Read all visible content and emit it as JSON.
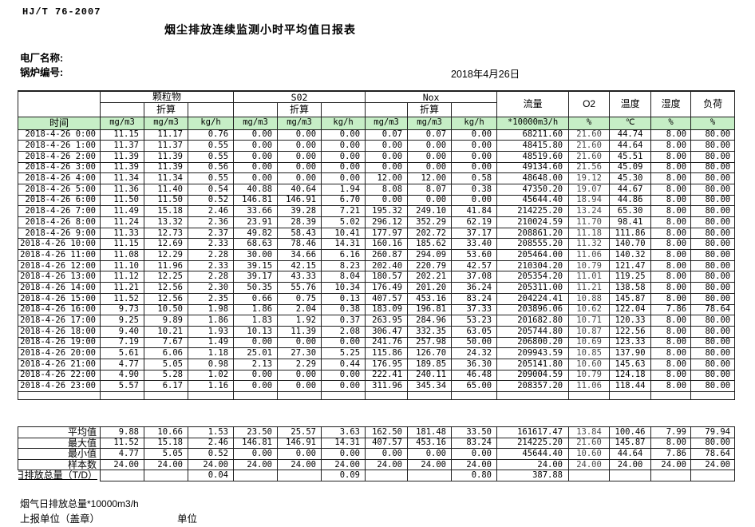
{
  "page": {
    "standard": "HJ/T  76-2007",
    "title": "烟尘排放连续监测小时平均值日报表",
    "plant_label": "电厂名称:",
    "boiler_label": "锅炉编号:",
    "date": "2018年4月26日"
  },
  "colors": {
    "header_green": "#c6eec6",
    "grid_border": "#1f1f1f"
  },
  "table": {
    "time_header": "时间",
    "groups": [
      {
        "label": "颗粒物",
        "sub_label": "折算",
        "units": [
          "mg/m3",
          "mg/m3",
          "kg/h"
        ]
      },
      {
        "label": "S02",
        "sub_label": "折算",
        "units": [
          "mg/m3",
          "mg/m3",
          "kg/h"
        ]
      },
      {
        "label": "Nox",
        "sub_label": "折算",
        "units": [
          "mg/m3",
          "mg/m3",
          "kg/h"
        ]
      }
    ],
    "single_columns": [
      {
        "label": "流量",
        "unit": "*10000m3/h"
      },
      {
        "label": "O2",
        "unit": "%"
      },
      {
        "label": "温度",
        "unit": "℃"
      },
      {
        "label": "湿度",
        "unit": "%"
      },
      {
        "label": "负荷",
        "unit": "%"
      }
    ],
    "rows": [
      [
        "2018-4-26 0:00",
        "11.15",
        "11.17",
        "0.76",
        "0.00",
        "0.00",
        "0.00",
        "0.07",
        "0.07",
        "0.00",
        "68211.60",
        "21.60",
        "44.74",
        "8.00",
        "80.00"
      ],
      [
        "2018-4-26 1:00",
        "11.37",
        "11.37",
        "0.55",
        "0.00",
        "0.00",
        "0.00",
        "0.00",
        "0.00",
        "0.00",
        "48415.80",
        "21.60",
        "44.64",
        "8.00",
        "80.00"
      ],
      [
        "2018-4-26 2:00",
        "11.39",
        "11.39",
        "0.55",
        "0.00",
        "0.00",
        "0.00",
        "0.00",
        "0.00",
        "0.00",
        "48519.60",
        "21.60",
        "45.51",
        "8.00",
        "80.00"
      ],
      [
        "2018-4-26 3:00",
        "11.39",
        "11.39",
        "0.56",
        "0.00",
        "0.00",
        "0.00",
        "0.00",
        "0.00",
        "0.00",
        "49134.60",
        "21.56",
        "45.09",
        "8.00",
        "80.00"
      ],
      [
        "2018-4-26 4:00",
        "11.34",
        "11.34",
        "0.55",
        "0.00",
        "0.00",
        "0.00",
        "12.00",
        "12.00",
        "0.58",
        "48648.00",
        "19.12",
        "45.30",
        "8.00",
        "80.00"
      ],
      [
        "2018-4-26 5:00",
        "11.36",
        "11.40",
        "0.54",
        "40.88",
        "40.64",
        "1.94",
        "8.08",
        "8.07",
        "0.38",
        "47350.20",
        "19.07",
        "44.67",
        "8.00",
        "80.00"
      ],
      [
        "2018-4-26 6:00",
        "11.50",
        "11.50",
        "0.52",
        "146.81",
        "146.91",
        "6.70",
        "0.00",
        "0.00",
        "0.00",
        "45644.40",
        "18.94",
        "44.86",
        "8.00",
        "80.00"
      ],
      [
        "2018-4-26 7:00",
        "11.49",
        "15.18",
        "2.46",
        "33.66",
        "39.28",
        "7.21",
        "195.32",
        "249.10",
        "41.84",
        "214225.20",
        "13.24",
        "65.30",
        "8.00",
        "80.00"
      ],
      [
        "2018-4-26 8:00",
        "11.24",
        "13.32",
        "2.36",
        "23.91",
        "28.39",
        "5.02",
        "296.12",
        "352.29",
        "62.19",
        "210024.59",
        "11.70",
        "98.41",
        "8.00",
        "80.00"
      ],
      [
        "2018-4-26 9:00",
        "11.33",
        "12.73",
        "2.37",
        "49.82",
        "58.43",
        "10.41",
        "177.97",
        "202.72",
        "37.17",
        "208861.20",
        "11.18",
        "111.86",
        "8.00",
        "80.00"
      ],
      [
        "2018-4-26 10:00",
        "11.15",
        "12.69",
        "2.33",
        "68.63",
        "78.46",
        "14.31",
        "160.16",
        "185.62",
        "33.40",
        "208555.20",
        "11.32",
        "140.70",
        "8.00",
        "80.00"
      ],
      [
        "2018-4-26 11:00",
        "11.08",
        "12.29",
        "2.28",
        "30.00",
        "34.66",
        "6.16",
        "260.87",
        "294.09",
        "53.60",
        "205464.00",
        "11.06",
        "140.32",
        "8.00",
        "80.00"
      ],
      [
        "2018-4-26 12:00",
        "11.10",
        "11.96",
        "2.33",
        "39.15",
        "42.15",
        "8.23",
        "202.40",
        "220.79",
        "42.57",
        "210304.20",
        "10.79",
        "121.47",
        "8.00",
        "80.00"
      ],
      [
        "2018-4-26 13:00",
        "11.12",
        "12.25",
        "2.28",
        "39.17",
        "43.33",
        "8.04",
        "180.57",
        "202.21",
        "37.08",
        "205354.20",
        "11.01",
        "119.25",
        "8.00",
        "80.00"
      ],
      [
        "2018-4-26 14:00",
        "11.21",
        "12.56",
        "2.30",
        "50.35",
        "55.76",
        "10.34",
        "176.49",
        "201.20",
        "36.24",
        "205311.00",
        "11.21",
        "138.58",
        "8.00",
        "80.00"
      ],
      [
        "2018-4-26 15:00",
        "11.52",
        "12.56",
        "2.35",
        "0.66",
        "0.75",
        "0.13",
        "407.57",
        "453.16",
        "83.24",
        "204224.41",
        "10.88",
        "145.87",
        "8.00",
        "80.00"
      ],
      [
        "2018-4-26 16:00",
        "9.73",
        "10.50",
        "1.98",
        "1.86",
        "2.04",
        "0.38",
        "183.09",
        "196.81",
        "37.33",
        "203896.06",
        "10.62",
        "122.04",
        "7.86",
        "78.64"
      ],
      [
        "2018-4-26 17:00",
        "9.25",
        "9.89",
        "1.86",
        "1.83",
        "1.92",
        "0.37",
        "263.95",
        "284.96",
        "53.23",
        "201682.80",
        "10.71",
        "120.33",
        "8.00",
        "80.00"
      ],
      [
        "2018-4-26 18:00",
        "9.40",
        "10.21",
        "1.93",
        "10.13",
        "11.39",
        "2.08",
        "306.47",
        "332.35",
        "63.05",
        "205744.80",
        "10.87",
        "122.56",
        "8.00",
        "80.00"
      ],
      [
        "2018-4-26 19:00",
        "7.19",
        "7.67",
        "1.49",
        "0.00",
        "0.00",
        "0.00",
        "241.76",
        "257.98",
        "50.00",
        "206800.20",
        "10.69",
        "123.33",
        "8.00",
        "80.00"
      ],
      [
        "2018-4-26 20:00",
        "5.61",
        "6.06",
        "1.18",
        "25.01",
        "27.30",
        "5.25",
        "115.86",
        "126.70",
        "24.32",
        "209943.59",
        "10.85",
        "137.90",
        "8.00",
        "80.00"
      ],
      [
        "2018-4-26 21:00",
        "4.77",
        "5.05",
        "0.98",
        "2.13",
        "2.29",
        "0.44",
        "176.95",
        "189.85",
        "36.30",
        "205141.80",
        "10.60",
        "145.63",
        "8.00",
        "80.00"
      ],
      [
        "2018-4-26 22:00",
        "4.90",
        "5.28",
        "1.02",
        "0.00",
        "0.00",
        "0.00",
        "222.41",
        "240.11",
        "46.48",
        "209004.59",
        "10.79",
        "124.18",
        "8.00",
        "80.00"
      ],
      [
        "2018-4-26 23:00",
        "5.57",
        "6.17",
        "1.16",
        "0.00",
        "0.00",
        "0.00",
        "311.96",
        "345.34",
        "65.00",
        "208357.20",
        "11.06",
        "118.44",
        "8.00",
        "80.00"
      ]
    ],
    "summary_rows": [
      {
        "label": "平均值",
        "values": [
          "9.88",
          "10.66",
          "1.53",
          "23.50",
          "25.57",
          "3.63",
          "162.50",
          "181.48",
          "33.50",
          "161617.47",
          "13.84",
          "100.46",
          "7.99",
          "79.94"
        ]
      },
      {
        "label": "最大值",
        "values": [
          "11.52",
          "15.18",
          "2.46",
          "146.81",
          "146.91",
          "14.31",
          "407.57",
          "453.16",
          "83.24",
          "214225.20",
          "21.60",
          "145.87",
          "8.00",
          "80.00"
        ]
      },
      {
        "label": "最小值",
        "values": [
          "4.77",
          "5.05",
          "0.52",
          "0.00",
          "0.00",
          "0.00",
          "0.00",
          "0.00",
          "0.00",
          "45644.40",
          "10.60",
          "44.64",
          "7.86",
          "78.64"
        ]
      },
      {
        "label": "样本数",
        "values": [
          "24.00",
          "24.00",
          "24.00",
          "24.00",
          "24.00",
          "24.00",
          "24.00",
          "24.00",
          "24.00",
          "24.00",
          "24.00",
          "24.00",
          "24.00",
          "24.00"
        ]
      },
      {
        "label": "日排放总量（T/D）",
        "overflow": true,
        "values": [
          "",
          "",
          "0.04",
          "",
          "",
          "0.09",
          "",
          "",
          "0.80",
          "387.88",
          "",
          "",
          "",
          ""
        ]
      }
    ]
  },
  "footer": {
    "flue_total_label": "烟气日排放总量*10000m3/h",
    "report_unit_label": "上报单位（盖章）",
    "unit_label": "单位"
  }
}
